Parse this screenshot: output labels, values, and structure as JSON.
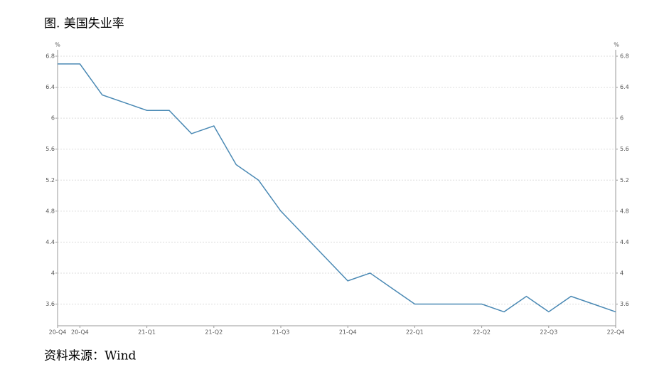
{
  "chart_data": {
    "type": "line",
    "title": "图. 美国失业率",
    "source": "资料来源：Wind",
    "y_label": "%",
    "y2_label": "%",
    "categories": [
      "20-Q4",
      "20-Q4",
      null,
      null,
      "21-Q1",
      null,
      null,
      "21-Q2",
      null,
      null,
      "21-Q3",
      null,
      null,
      "21-Q4",
      null,
      null,
      "22-Q1",
      null,
      null,
      "22-Q2",
      null,
      null,
      "22-Q3",
      null,
      null,
      "22-Q4"
    ],
    "series": [
      {
        "name": "美国失业率",
        "color": "#4a89b4",
        "values": [
          6.7,
          6.7,
          6.3,
          6.2,
          6.1,
          6.1,
          5.8,
          5.9,
          5.4,
          5.2,
          4.8,
          4.5,
          4.2,
          3.9,
          4.0,
          3.8,
          3.6,
          3.6,
          3.6,
          3.6,
          3.5,
          3.7,
          3.5,
          3.7,
          3.6,
          3.5
        ]
      }
    ],
    "ylim": [
      3.32,
      6.8
    ],
    "yticks": [
      3.6,
      4,
      4.4,
      4.8,
      5.2,
      5.6,
      6,
      6.4,
      6.8
    ],
    "y2lim": [
      3.32,
      6.8
    ],
    "y2ticks": [
      3.6,
      4,
      4.4,
      4.8,
      5.2,
      5.6,
      6,
      6.4,
      6.8
    ],
    "grid": true
  }
}
